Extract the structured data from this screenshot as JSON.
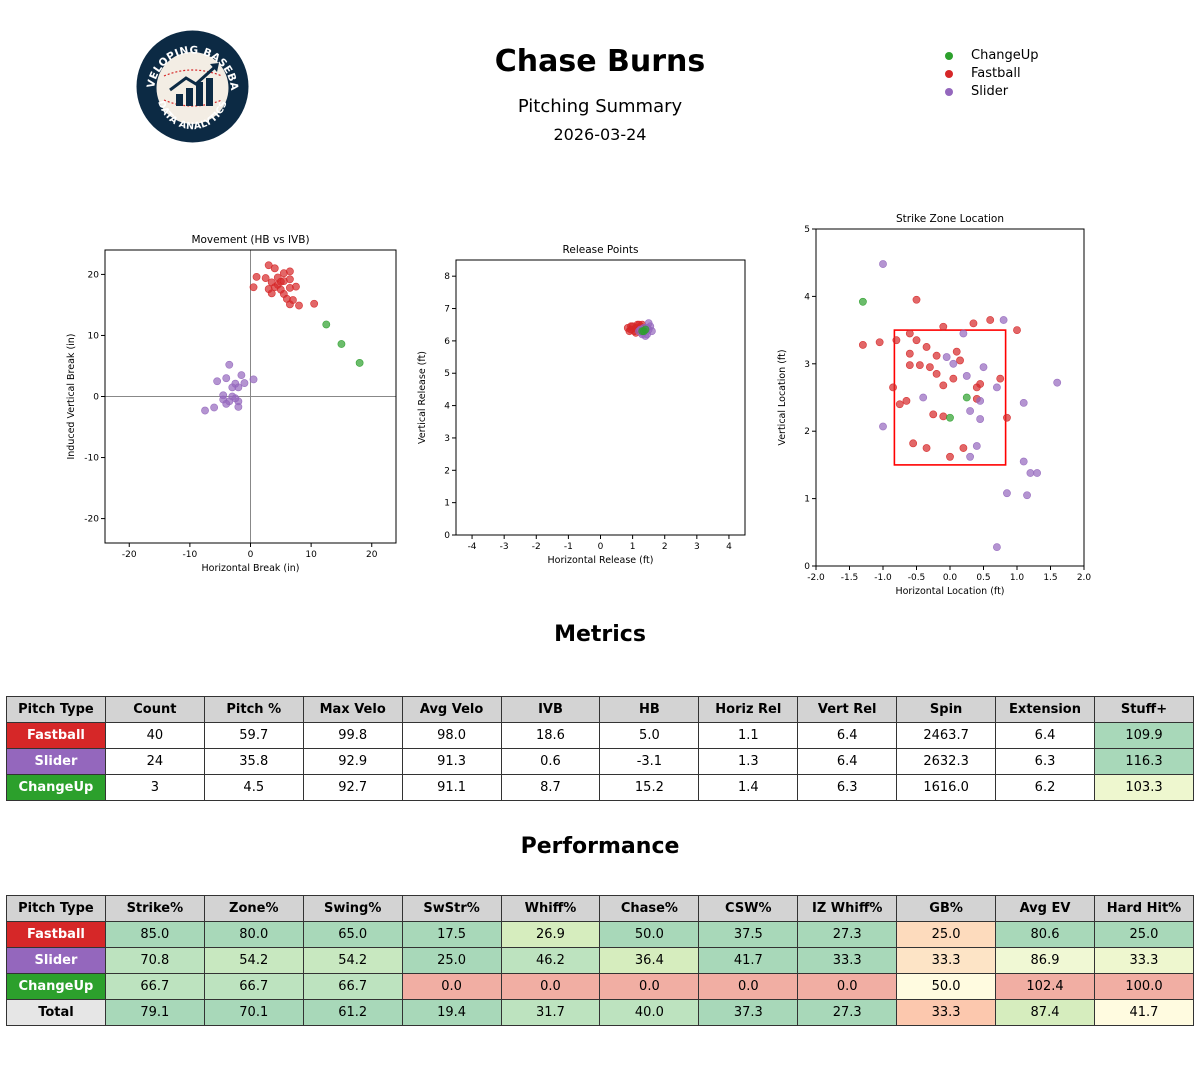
{
  "header": {
    "title": "Chase Burns",
    "subtitle": "Pitching Summary",
    "date": "2026-03-24",
    "logo_text_top": "DEVELOPING BASEBALL",
    "logo_text_bottom": "DATA ANALYTICS"
  },
  "legend": [
    {
      "label": "ChangeUp",
      "color": "#2ca02c"
    },
    {
      "label": "Fastball",
      "color": "#d62728"
    },
    {
      "label": "Slider",
      "color": "#9467bd"
    }
  ],
  "colors": {
    "ChangeUp": "#2ca02c",
    "Fastball": "#d62728",
    "Slider": "#9467bd",
    "Total": "#e6e6e6"
  },
  "chart_data": [
    {
      "type": "scatter",
      "title": "Movement (HB vs IVB)",
      "xlabel": "Horizontal Break (in)",
      "ylabel": "Induced Vertical Break (in)",
      "xlim": [
        -24,
        24
      ],
      "ylim": [
        -24,
        24
      ],
      "xticks": [
        -20,
        -10,
        0,
        10,
        20
      ],
      "yticks": [
        -20,
        -10,
        0,
        10,
        20
      ],
      "reference_lines": {
        "x": 0,
        "y": 0
      },
      "series": [
        {
          "name": "Fastball",
          "points": [
            [
              3.0,
              21.5
            ],
            [
              4.0,
              21.0
            ],
            [
              5.5,
              20.2
            ],
            [
              6.5,
              20.5
            ],
            [
              1.0,
              19.6
            ],
            [
              2.5,
              19.4
            ],
            [
              4.5,
              19.5
            ],
            [
              5.0,
              18.8
            ],
            [
              3.5,
              18.7
            ],
            [
              4.5,
              18.3
            ],
            [
              5.5,
              18.9
            ],
            [
              6.5,
              19.2
            ],
            [
              0.5,
              17.9
            ],
            [
              3.0,
              17.6
            ],
            [
              4.0,
              17.9
            ],
            [
              5.0,
              17.5
            ],
            [
              6.5,
              17.8
            ],
            [
              7.5,
              18.0
            ],
            [
              3.5,
              16.9
            ],
            [
              5.5,
              16.8
            ],
            [
              6.0,
              16.0
            ],
            [
              7.0,
              15.8
            ],
            [
              6.5,
              15.1
            ],
            [
              8.0,
              14.9
            ],
            [
              10.5,
              15.2
            ]
          ]
        },
        {
          "name": "Slider",
          "points": [
            [
              -3.5,
              5.2
            ],
            [
              -1.5,
              3.5
            ],
            [
              -4.0,
              3.0
            ],
            [
              -5.5,
              2.5
            ],
            [
              -2.5,
              2.1
            ],
            [
              0.5,
              2.8
            ],
            [
              -1.0,
              2.2
            ],
            [
              -3.0,
              1.5
            ],
            [
              -2.0,
              1.5
            ],
            [
              -4.5,
              0.2
            ],
            [
              -3.0,
              0.0
            ],
            [
              -2.5,
              -0.3
            ],
            [
              -4.5,
              -0.5
            ],
            [
              -3.5,
              -0.8
            ],
            [
              -2.0,
              -0.8
            ],
            [
              -4.0,
              -1.2
            ],
            [
              -2.0,
              -1.7
            ],
            [
              -6.0,
              -1.8
            ],
            [
              -7.5,
              -2.3
            ]
          ]
        },
        {
          "name": "ChangeUp",
          "points": [
            [
              12.5,
              11.8
            ],
            [
              15.0,
              8.6
            ],
            [
              18.0,
              5.5
            ]
          ]
        }
      ]
    },
    {
      "type": "scatter",
      "title": "Release Points",
      "xlabel": "Horizontal Release (ft)",
      "ylabel": "Vertical Release (ft)",
      "xlim": [
        -4.5,
        4.5
      ],
      "ylim": [
        0,
        8.5
      ],
      "xticks": [
        -4,
        -3,
        -2,
        -1,
        0,
        1,
        2,
        3,
        4
      ],
      "yticks": [
        0,
        1,
        2,
        3,
        4,
        5,
        6,
        7,
        8
      ],
      "series": [
        {
          "name": "Fastball",
          "points": [
            [
              0.85,
              6.4
            ],
            [
              0.95,
              6.35
            ],
            [
              1.0,
              6.45
            ],
            [
              1.05,
              6.3
            ],
            [
              1.1,
              6.4
            ],
            [
              1.15,
              6.5
            ],
            [
              1.2,
              6.35
            ],
            [
              1.25,
              6.45
            ],
            [
              1.3,
              6.3
            ],
            [
              0.9,
              6.3
            ],
            [
              1.1,
              6.25
            ],
            [
              1.2,
              6.5
            ],
            [
              0.95,
              6.45
            ],
            [
              1.3,
              6.5
            ],
            [
              1.35,
              6.4
            ]
          ]
        },
        {
          "name": "Slider",
          "points": [
            [
              1.2,
              6.3
            ],
            [
              1.3,
              6.25
            ],
            [
              1.35,
              6.4
            ],
            [
              1.4,
              6.3
            ],
            [
              1.45,
              6.2
            ],
            [
              1.5,
              6.35
            ],
            [
              1.55,
              6.45
            ],
            [
              1.6,
              6.3
            ],
            [
              1.5,
              6.55
            ],
            [
              1.3,
              6.2
            ],
            [
              1.4,
              6.15
            ],
            [
              1.45,
              6.4
            ],
            [
              1.25,
              6.35
            ]
          ]
        },
        {
          "name": "ChangeUp",
          "points": [
            [
              1.35,
              6.3
            ],
            [
              1.4,
              6.35
            ],
            [
              1.3,
              6.3
            ]
          ]
        }
      ]
    },
    {
      "type": "scatter",
      "title": "Strike Zone Location",
      "xlabel": "Horizontal Location (ft)",
      "ylabel": "Vertical Location (ft)",
      "xlim": [
        -2.0,
        2.0
      ],
      "ylim": [
        0,
        5
      ],
      "xticks": [
        -2.0,
        -1.5,
        -1.0,
        -0.5,
        0.0,
        0.5,
        1.0,
        1.5,
        2.0
      ],
      "yticks": [
        0,
        1,
        2,
        3,
        4,
        5
      ],
      "strike_zone": {
        "x": [
          -0.83,
          0.83
        ],
        "y": [
          1.5,
          3.5
        ],
        "color": "#ff0000"
      },
      "series": [
        {
          "name": "Fastball",
          "points": [
            [
              -0.5,
              3.95
            ],
            [
              0.6,
              3.65
            ],
            [
              0.35,
              3.6
            ],
            [
              1.0,
              3.5
            ],
            [
              -0.1,
              3.55
            ],
            [
              -0.6,
              3.45
            ],
            [
              -0.8,
              3.35
            ],
            [
              -0.5,
              3.35
            ],
            [
              -1.3,
              3.28
            ],
            [
              -1.05,
              3.32
            ],
            [
              -0.35,
              3.25
            ],
            [
              0.1,
              3.18
            ],
            [
              -0.6,
              3.15
            ],
            [
              -0.2,
              3.12
            ],
            [
              0.15,
              3.05
            ],
            [
              -0.45,
              2.98
            ],
            [
              -0.6,
              2.98
            ],
            [
              -0.3,
              2.95
            ],
            [
              -0.2,
              2.85
            ],
            [
              0.05,
              2.78
            ],
            [
              0.75,
              2.78
            ],
            [
              -0.1,
              2.68
            ],
            [
              0.45,
              2.7
            ],
            [
              0.4,
              2.65
            ],
            [
              -0.85,
              2.65
            ],
            [
              -0.65,
              2.45
            ],
            [
              -0.75,
              2.4
            ],
            [
              0.4,
              2.48
            ],
            [
              -0.25,
              2.25
            ],
            [
              -0.1,
              2.22
            ],
            [
              0.85,
              2.2
            ],
            [
              -0.55,
              1.82
            ],
            [
              -0.35,
              1.75
            ],
            [
              0.2,
              1.75
            ],
            [
              0.0,
              1.62
            ]
          ]
        },
        {
          "name": "Slider",
          "points": [
            [
              -1.0,
              4.48
            ],
            [
              0.8,
              3.65
            ],
            [
              0.2,
              3.45
            ],
            [
              -0.05,
              3.1
            ],
            [
              0.05,
              3.0
            ],
            [
              0.5,
              2.95
            ],
            [
              0.25,
              2.82
            ],
            [
              0.7,
              2.65
            ],
            [
              -0.4,
              2.5
            ],
            [
              0.45,
              2.45
            ],
            [
              0.3,
              2.3
            ],
            [
              1.1,
              2.42
            ],
            [
              0.45,
              2.18
            ],
            [
              1.6,
              2.72
            ],
            [
              -1.0,
              2.07
            ],
            [
              0.4,
              1.78
            ],
            [
              0.3,
              1.62
            ],
            [
              1.1,
              1.55
            ],
            [
              1.2,
              1.38
            ],
            [
              1.3,
              1.38
            ],
            [
              0.85,
              1.08
            ],
            [
              1.15,
              1.05
            ],
            [
              0.7,
              0.28
            ]
          ]
        },
        {
          "name": "ChangeUp",
          "points": [
            [
              -1.3,
              3.92
            ],
            [
              0.25,
              2.5
            ],
            [
              0.0,
              2.2
            ]
          ]
        }
      ]
    }
  ],
  "metrics": {
    "title": "Metrics",
    "headers": [
      "Pitch Type",
      "Count",
      "Pitch %",
      "Max Velo",
      "Avg Velo",
      "IVB",
      "HB",
      "Horiz Rel",
      "Vert Rel",
      "Spin",
      "Extension",
      "Stuff+"
    ],
    "rows": [
      {
        "type": "Fastball",
        "cells": [
          "40",
          "59.7",
          "99.8",
          "98.0",
          "18.6",
          "5.0",
          "1.1",
          "6.4",
          "2463.7",
          "6.4",
          "109.9"
        ],
        "stuff_color": "#a8d8b9"
      },
      {
        "type": "Slider",
        "cells": [
          "24",
          "35.8",
          "92.9",
          "91.3",
          "0.6",
          "-3.1",
          "1.3",
          "6.4",
          "2632.3",
          "6.3",
          "116.3"
        ],
        "stuff_color": "#a8d8b9"
      },
      {
        "type": "ChangeUp",
        "cells": [
          "3",
          "4.5",
          "92.7",
          "91.1",
          "8.7",
          "15.2",
          "1.4",
          "6.3",
          "1616.0",
          "6.2",
          "103.3"
        ],
        "stuff_color": "#eef7cf"
      }
    ]
  },
  "performance": {
    "title": "Performance",
    "headers": [
      "Pitch Type",
      "Strike%",
      "Zone%",
      "Swing%",
      "SwStr%",
      "Whiff%",
      "Chase%",
      "CSW%",
      "IZ Whiff%",
      "GB%",
      "Avg EV",
      "Hard Hit%"
    ],
    "rows": [
      {
        "type": "Fastball",
        "cells": [
          "85.0",
          "80.0",
          "65.0",
          "17.5",
          "26.9",
          "50.0",
          "37.5",
          "27.3",
          "25.0",
          "80.6",
          "25.0"
        ],
        "colors": [
          "#a8d8b9",
          "#a8d8b9",
          "#a8d8b9",
          "#a8d8b9",
          "#d6edbe",
          "#a8d8b9",
          "#a8d8b9",
          "#a8d8b9",
          "#fddbbd",
          "#a8d8b9",
          "#a8d8b9"
        ]
      },
      {
        "type": "Slider",
        "cells": [
          "70.8",
          "54.2",
          "54.2",
          "25.0",
          "46.2",
          "36.4",
          "41.7",
          "33.3",
          "33.3",
          "86.9",
          "33.3"
        ],
        "colors": [
          "#bde3bf",
          "#c8e8c0",
          "#c8e8c0",
          "#a8d8b9",
          "#bde3bf",
          "#d6edbe",
          "#a8d8b9",
          "#a8d8b9",
          "#fde4c6",
          "#f0f8d4",
          "#eef7cf"
        ]
      },
      {
        "type": "ChangeUp",
        "cells": [
          "66.7",
          "66.7",
          "66.7",
          "0.0",
          "0.0",
          "0.0",
          "0.0",
          "0.0",
          "50.0",
          "102.4",
          "100.0"
        ],
        "colors": [
          "#bde3bf",
          "#bde3bf",
          "#bde3bf",
          "#f1aea3",
          "#f1aea3",
          "#f1aea3",
          "#f1aea3",
          "#f1aea3",
          "#fffbe0",
          "#f1aea3",
          "#f1aea3"
        ]
      },
      {
        "type": "Total",
        "cells": [
          "79.1",
          "70.1",
          "61.2",
          "19.4",
          "31.7",
          "40.0",
          "37.3",
          "27.3",
          "33.3",
          "87.4",
          "41.7"
        ],
        "colors": [
          "#a8d8b9",
          "#a8d8b9",
          "#a8d8b9",
          "#a8d8b9",
          "#bde3bf",
          "#bde3bf",
          "#a8d8b9",
          "#a8d8b9",
          "#fcc8ae",
          "#d6edbe",
          "#fffbe0"
        ]
      }
    ]
  }
}
